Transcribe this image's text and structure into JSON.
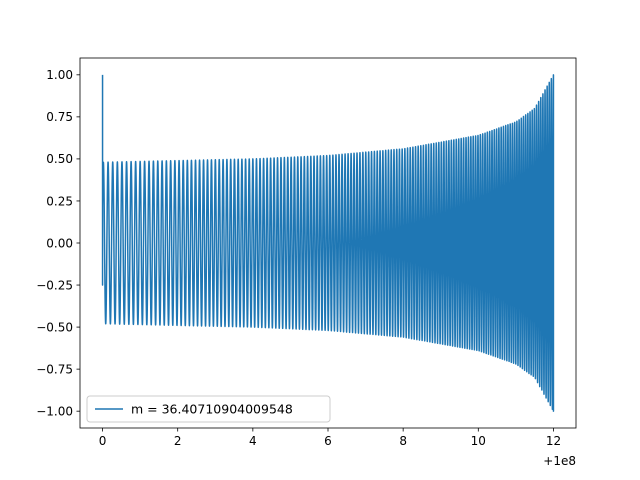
{
  "chart_data": {
    "type": "line",
    "title": "",
    "xlabel": "",
    "ylabel": "",
    "x_offset_label": "+1e8",
    "xlim": [
      -0.6,
      12.6
    ],
    "ylim": [
      -1.1,
      1.1
    ],
    "x_ticks": [
      0,
      2,
      4,
      6,
      8,
      10,
      12
    ],
    "x_tick_labels": [
      "0",
      "2",
      "4",
      "6",
      "8",
      "10",
      "12"
    ],
    "y_ticks": [
      1.0,
      0.75,
      0.5,
      0.25,
      0.0,
      -0.25,
      -0.5,
      -0.75,
      -1.0
    ],
    "y_tick_labels": [
      "1.00",
      "0.75",
      "0.50",
      "0.25",
      "0.00",
      "−0.25",
      "−0.50",
      "−0.75",
      "−1.00"
    ],
    "grid": false,
    "legend_position": "lower-left",
    "series": [
      {
        "name": "m = 36.40710904009548",
        "color": "#1f77b4",
        "x_range": [
          0,
          12
        ],
        "initial_spike": [
          1.0,
          -0.25
        ],
        "envelope": {
          "x": [
            0,
            2,
            4,
            6,
            8,
            10,
            11,
            11.5,
            12
          ],
          "amplitude": [
            0.48,
            0.49,
            0.5,
            0.52,
            0.56,
            0.64,
            0.72,
            0.8,
            1.0
          ]
        },
        "cycles_per_unit": [
          8,
          18
        ]
      }
    ]
  }
}
